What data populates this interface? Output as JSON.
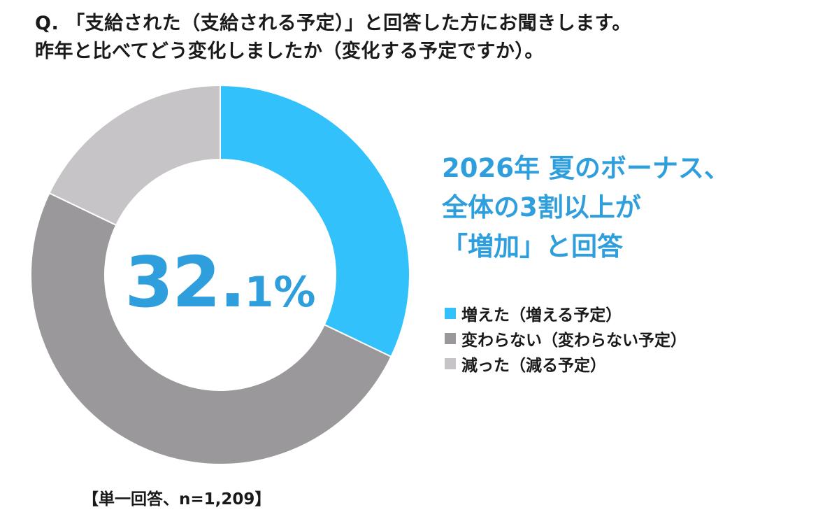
{
  "question": {
    "line1": "Q. 「支給された（支給される予定）」と回答した方にお聞きします。",
    "line2": "昨年と比べてどう変化しましたか（変化する予定ですか）。"
  },
  "headline": {
    "line1": "2026年 夏のボーナス、",
    "line2": "全体の3割以上が",
    "line3": "「増加」と回答"
  },
  "center_value": {
    "int": "32.",
    "dec": "1%"
  },
  "footnote": "【単一回答、n=1,209】",
  "colors": {
    "increase": "#33c1fb",
    "same": "#9a989a",
    "decrease": "#c6c4c6",
    "accent": "#2e9fdc"
  },
  "chart_data": {
    "type": "pie",
    "title": "",
    "slices": [
      {
        "label": "増えた（増える予定）",
        "value": 32.1,
        "color": "#33c1fb"
      },
      {
        "label": "変わらない（変わらない予定）",
        "value": 50.0,
        "color": "#9a989a"
      },
      {
        "label": "減った（減る予定）",
        "value": 17.9,
        "color": "#c6c4c6"
      }
    ],
    "legend": "right",
    "annotations": [
      "32.1%"
    ]
  }
}
